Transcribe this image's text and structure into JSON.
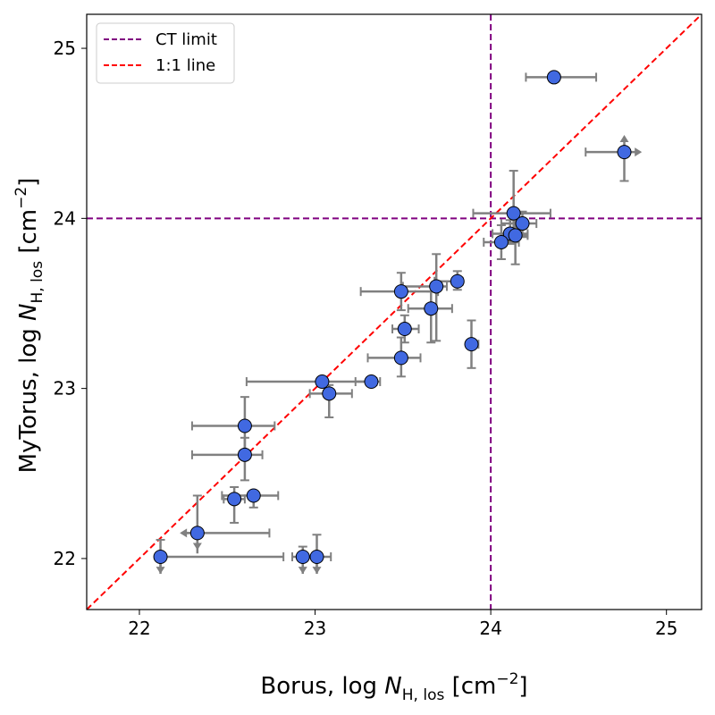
{
  "chart_data": {
    "type": "scatter",
    "xlabel": {
      "prefix": "Borus, log ",
      "var": "N",
      "sub": "H, los",
      "unit_open": " [cm",
      "sup": "−2",
      "unit_close": "]"
    },
    "ylabel": {
      "prefix": "MyTorus, log ",
      "var": "N",
      "sub": "H, los",
      "unit_open": " [cm",
      "sup": "−2",
      "unit_close": "]"
    },
    "xlim": [
      21.7,
      25.2
    ],
    "ylim": [
      21.7,
      25.2
    ],
    "xticks": [
      22,
      23,
      24,
      25
    ],
    "yticks": [
      22,
      23,
      24,
      25
    ],
    "xtick_labels": [
      "22",
      "23",
      "24",
      "25"
    ],
    "ytick_labels": [
      "22",
      "23",
      "24",
      "25"
    ],
    "ct_limit": 24,
    "legend": {
      "position": "top-left",
      "entries": [
        {
          "label": "CT limit",
          "color": "#800080",
          "style": "dashed"
        },
        {
          "label": "1:1 line",
          "color": "#ff0000",
          "style": "dashed"
        }
      ]
    },
    "colors": {
      "point": "#4169e1",
      "errorbar": "#808080"
    },
    "points": [
      {
        "x": 24.36,
        "y": 24.83,
        "xerr": [
          0.16,
          0.24
        ],
        "yerr": [
          0,
          0
        ]
      },
      {
        "x": 24.76,
        "y": 24.39,
        "xerr": [
          0.22,
          0
        ],
        "yerr": [
          0.17,
          0
        ],
        "xlim_arrow": "right",
        "ylim_arrow": "up"
      },
      {
        "x": 24.13,
        "y": 24.03,
        "xerr": [
          0.23,
          0.21
        ],
        "yerr": [
          0.12,
          0.25
        ]
      },
      {
        "x": 24.18,
        "y": 23.97,
        "xerr": [
          0.12,
          0.08
        ],
        "yerr": [
          0.08,
          0.07
        ]
      },
      {
        "x": 24.11,
        "y": 23.91,
        "xerr": [
          0.1,
          0.1
        ],
        "yerr": [
          0.06,
          0.08
        ]
      },
      {
        "x": 24.14,
        "y": 23.9,
        "xerr": [
          0.08,
          0.07
        ],
        "yerr": [
          0.17,
          0.1
        ]
      },
      {
        "x": 24.06,
        "y": 23.86,
        "xerr": [
          0.1,
          0.1
        ],
        "yerr": [
          0.1,
          0.1
        ]
      },
      {
        "x": 23.49,
        "y": 23.57,
        "xerr": [
          0.23,
          0.21
        ],
        "yerr": [
          0.11,
          0.11
        ]
      },
      {
        "x": 23.69,
        "y": 23.6,
        "xerr": [
          0.19,
          0.06
        ],
        "yerr": [
          0.32,
          0.19
        ]
      },
      {
        "x": 23.81,
        "y": 23.63,
        "xerr": [
          0.13,
          0.03
        ],
        "yerr": [
          0.05,
          0.06
        ]
      },
      {
        "x": 23.66,
        "y": 23.47,
        "xerr": [
          0.13,
          0.12
        ],
        "yerr": [
          0.2,
          0.1
        ]
      },
      {
        "x": 23.51,
        "y": 23.35,
        "xerr": [
          0.07,
          0.08
        ],
        "yerr": [
          0.08,
          0.08
        ]
      },
      {
        "x": 23.89,
        "y": 23.26,
        "xerr": [
          0.02,
          0.04
        ],
        "yerr": [
          0.14,
          0.14
        ]
      },
      {
        "x": 23.49,
        "y": 23.18,
        "xerr": [
          0.19,
          0.11
        ],
        "yerr": [
          0.11,
          0.12
        ]
      },
      {
        "x": 23.04,
        "y": 23.04,
        "xerr": [
          0.43,
          0.33
        ],
        "yerr": [
          0.02,
          0.02
        ]
      },
      {
        "x": 23.32,
        "y": 23.04,
        "xerr": [
          0.09,
          0.03
        ],
        "yerr": [
          0.02,
          0.02
        ]
      },
      {
        "x": 23.08,
        "y": 22.97,
        "xerr": [
          0.11,
          0.13
        ],
        "yerr": [
          0.14,
          0.05
        ]
      },
      {
        "x": 22.6,
        "y": 22.78,
        "xerr": [
          0.3,
          0.17
        ],
        "yerr": [
          0.18,
          0.17
        ]
      },
      {
        "x": 22.6,
        "y": 22.61,
        "xerr": [
          0.3,
          0.1
        ],
        "yerr": [
          0.15,
          0.1
        ]
      },
      {
        "x": 22.65,
        "y": 22.37,
        "xerr": [
          0.18,
          0.14
        ],
        "yerr": [
          0.07,
          0.02
        ]
      },
      {
        "x": 22.54,
        "y": 22.35,
        "xerr": [
          0.06,
          0.06
        ],
        "yerr": [
          0.14,
          0.07
        ]
      },
      {
        "x": 22.33,
        "y": 22.15,
        "xerr": [
          0.08,
          0.41
        ],
        "yerr": [
          0.12,
          0.22
        ],
        "xlim_arrow": "left",
        "ylim_arrow": "down"
      },
      {
        "x": 22.12,
        "y": 22.01,
        "xerr": [
          0,
          0.7
        ],
        "yerr": [
          0.1,
          0.1
        ],
        "ylim_arrow": "down"
      },
      {
        "x": 22.93,
        "y": 22.01,
        "xerr": [
          0.06,
          0.07
        ],
        "yerr": [
          0.1,
          0.06
        ],
        "ylim_arrow": "down"
      },
      {
        "x": 23.01,
        "y": 22.01,
        "xerr": [
          0.07,
          0.08
        ],
        "yerr": [
          0.1,
          0.13
        ],
        "ylim_arrow": "down"
      }
    ]
  }
}
